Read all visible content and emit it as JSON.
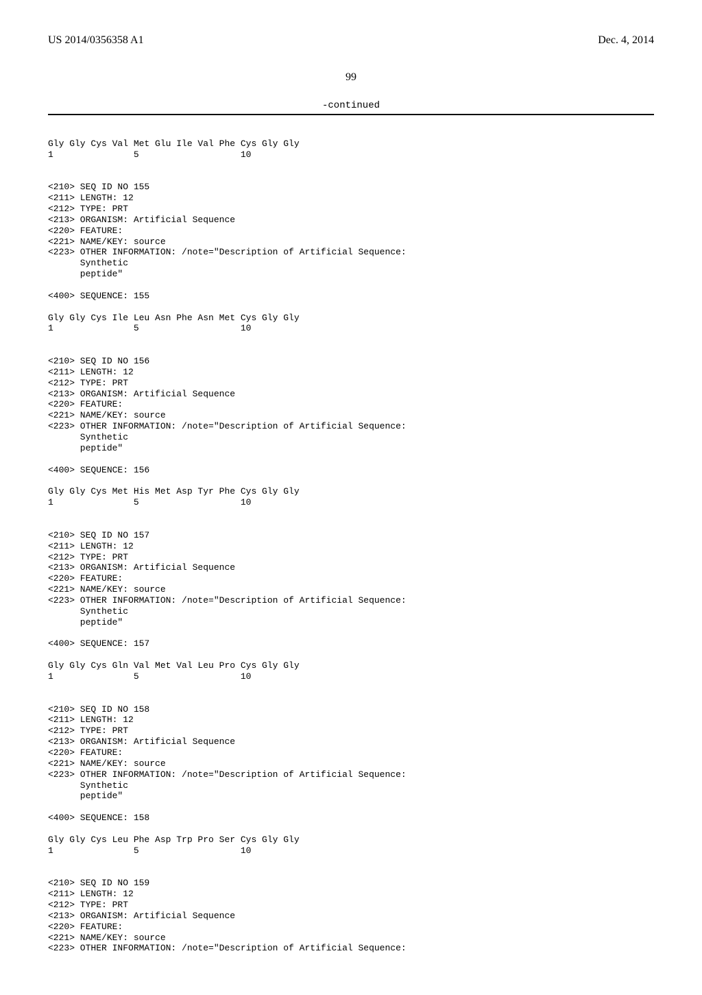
{
  "header": {
    "pub_number": "US 2014/0356358 A1",
    "pub_date": "Dec. 4, 2014"
  },
  "page_number": "99",
  "continued_label": "-continued",
  "listing": "\nGly Gly Cys Val Met Glu Ile Val Phe Cys Gly Gly\n1               5                   10\n\n\n<210> SEQ ID NO 155\n<211> LENGTH: 12\n<212> TYPE: PRT\n<213> ORGANISM: Artificial Sequence\n<220> FEATURE:\n<221> NAME/KEY: source\n<223> OTHER INFORMATION: /note=\"Description of Artificial Sequence:\n      Synthetic\n      peptide\"\n\n<400> SEQUENCE: 155\n\nGly Gly Cys Ile Leu Asn Phe Asn Met Cys Gly Gly\n1               5                   10\n\n\n<210> SEQ ID NO 156\n<211> LENGTH: 12\n<212> TYPE: PRT\n<213> ORGANISM: Artificial Sequence\n<220> FEATURE:\n<221> NAME/KEY: source\n<223> OTHER INFORMATION: /note=\"Description of Artificial Sequence:\n      Synthetic\n      peptide\"\n\n<400> SEQUENCE: 156\n\nGly Gly Cys Met His Met Asp Tyr Phe Cys Gly Gly\n1               5                   10\n\n\n<210> SEQ ID NO 157\n<211> LENGTH: 12\n<212> TYPE: PRT\n<213> ORGANISM: Artificial Sequence\n<220> FEATURE:\n<221> NAME/KEY: source\n<223> OTHER INFORMATION: /note=\"Description of Artificial Sequence:\n      Synthetic\n      peptide\"\n\n<400> SEQUENCE: 157\n\nGly Gly Cys Gln Val Met Val Leu Pro Cys Gly Gly\n1               5                   10\n\n\n<210> SEQ ID NO 158\n<211> LENGTH: 12\n<212> TYPE: PRT\n<213> ORGANISM: Artificial Sequence\n<220> FEATURE:\n<221> NAME/KEY: source\n<223> OTHER INFORMATION: /note=\"Description of Artificial Sequence:\n      Synthetic\n      peptide\"\n\n<400> SEQUENCE: 158\n\nGly Gly Cys Leu Phe Asp Trp Pro Ser Cys Gly Gly\n1               5                   10\n\n\n<210> SEQ ID NO 159\n<211> LENGTH: 12\n<212> TYPE: PRT\n<213> ORGANISM: Artificial Sequence\n<220> FEATURE:\n<221> NAME/KEY: source\n<223> OTHER INFORMATION: /note=\"Description of Artificial Sequence:"
}
